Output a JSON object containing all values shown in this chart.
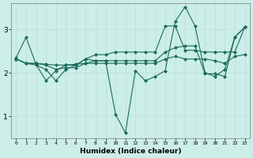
{
  "title": "",
  "xlabel": "Humidex (Indice chaleur)",
  "bg_color": "#cceee8",
  "line_color": "#1a6b5a",
  "grid_color": "#bbddda",
  "marker": "D",
  "marker_size": 2.2,
  "lw": 0.8,
  "xlim": [
    -0.5,
    23.5
  ],
  "ylim": [
    0.5,
    3.6
  ],
  "yticks": [
    1,
    2,
    3
  ],
  "xticks": [
    0,
    1,
    2,
    3,
    4,
    5,
    6,
    7,
    8,
    9,
    10,
    11,
    12,
    13,
    14,
    15,
    16,
    17,
    18,
    19,
    20,
    21,
    22,
    23
  ],
  "series": [
    [
      2.35,
      2.82,
      2.2,
      1.82,
      2.05,
      2.18,
      2.18,
      2.32,
      2.28,
      2.28,
      1.05,
      0.62,
      2.05,
      1.82,
      1.92,
      2.05,
      3.18,
      3.52,
      3.08,
      2.0,
      1.92,
      2.08,
      2.82,
      3.05
    ],
    [
      2.32,
      2.22,
      2.22,
      2.2,
      2.18,
      2.18,
      2.2,
      2.22,
      2.22,
      2.22,
      2.22,
      2.22,
      2.22,
      2.22,
      2.22,
      2.32,
      2.38,
      2.32,
      2.32,
      2.32,
      2.28,
      2.22,
      2.38,
      2.42
    ],
    [
      2.32,
      2.22,
      2.22,
      2.18,
      2.08,
      2.12,
      2.12,
      2.22,
      2.28,
      2.28,
      2.28,
      2.28,
      2.28,
      2.28,
      2.28,
      2.48,
      2.58,
      2.62,
      2.62,
      1.98,
      1.98,
      1.92,
      2.82,
      3.05
    ],
    [
      2.32,
      2.22,
      2.18,
      2.08,
      1.82,
      2.08,
      2.18,
      2.32,
      2.42,
      2.42,
      2.48,
      2.48,
      2.48,
      2.48,
      2.48,
      3.08,
      3.08,
      2.52,
      2.52,
      2.48,
      2.48,
      2.48,
      2.48,
      3.05
    ]
  ]
}
